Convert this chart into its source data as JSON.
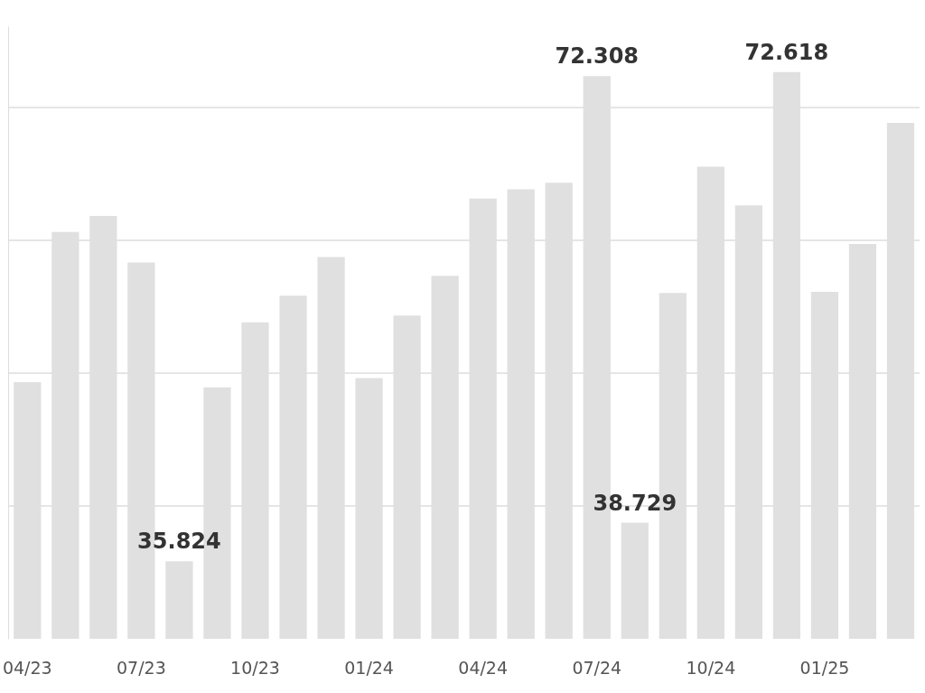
{
  "chart_data": {
    "type": "bar",
    "categories": [
      "04/23",
      null,
      null,
      "07/23",
      null,
      null,
      "10/23",
      null,
      null,
      "01/24",
      null,
      null,
      "04/24",
      null,
      null,
      "07/24",
      null,
      null,
      "10/24",
      null,
      null,
      "01/25",
      null,
      null
    ],
    "values": [
      49.3,
      60.6,
      61.8,
      58.3,
      35.824,
      48.9,
      53.8,
      55.8,
      58.7,
      49.6,
      54.3,
      57.3,
      63.1,
      63.8,
      64.3,
      72.308,
      38.729,
      56.0,
      65.5,
      62.6,
      72.618,
      56.1,
      59.7,
      68.8
    ],
    "value_labels": [
      null,
      null,
      null,
      null,
      "35.824",
      null,
      null,
      null,
      null,
      null,
      null,
      null,
      null,
      null,
      null,
      "72.308",
      "38.729",
      null,
      null,
      null,
      "72.618",
      null,
      null,
      null
    ],
    "color": "#e0e0e0",
    "ylim": [
      30,
      76
    ],
    "yticks": [
      {
        "value": 40,
        "label": null
      },
      {
        "value": 50,
        "label": null
      },
      {
        "value": 60,
        "label": null
      },
      {
        "value": 70,
        "label": null
      }
    ],
    "grid": "y",
    "tick_labels": "x"
  }
}
